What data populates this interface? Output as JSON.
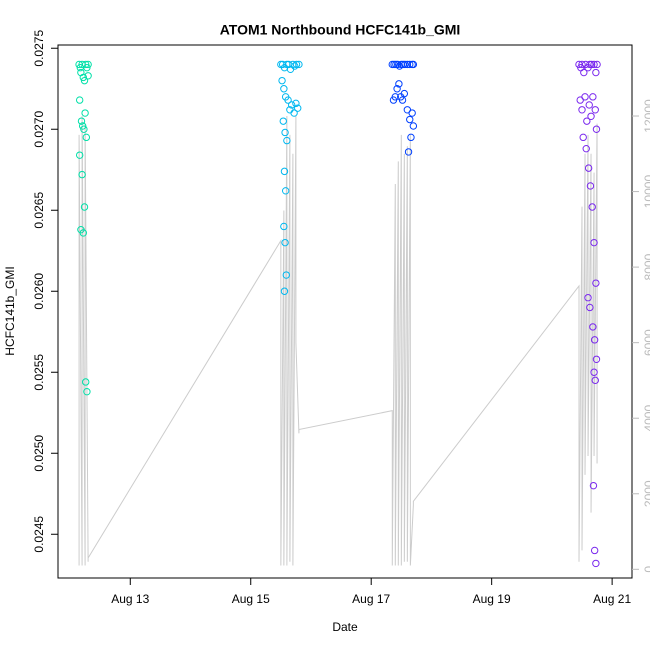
{
  "chart_data": {
    "type": "scatter",
    "title": "ATOM1 Northbound HCFC141b_GMI",
    "x_label": "Date",
    "y_label": "HCFC141b_GMI",
    "xlim": [
      11.8,
      21.33
    ],
    "xticks": [
      {
        "value": 13,
        "label": "Aug 13"
      },
      {
        "value": 15,
        "label": "Aug 15"
      },
      {
        "value": 17,
        "label": "Aug 17"
      },
      {
        "value": 19,
        "label": "Aug 19"
      },
      {
        "value": 21,
        "label": "Aug 21"
      }
    ],
    "ylim": [
      0.02423,
      0.02752
    ],
    "yticks": [
      0.0245,
      {
        "value": 0.025,
        "label": "0.0250"
      },
      0.0255,
      {
        "value": 0.026,
        "label": "0.0260"
      },
      0.0265,
      {
        "value": 0.027,
        "label": "0.0270"
      },
      0.0275
    ],
    "y2lim": [
      -230,
      13880
    ],
    "y2ticks": [
      0,
      2000,
      4000,
      6000,
      8000,
      10000,
      12000
    ],
    "y2_color": "#bbbbbb",
    "series": [
      {
        "color": "#00e0a8",
        "x": [
          12.15,
          12.17,
          12.18,
          12.2,
          12.22,
          12.24,
          12.26,
          12.28,
          12.3,
          12.16,
          12.19,
          12.21,
          12.23,
          12.25,
          12.27,
          12.16,
          12.2,
          12.24,
          12.18,
          12.22,
          12.26,
          12.28,
          12.3
        ],
        "values": [
          0.0274,
          0.02738,
          0.02735,
          0.0274,
          0.02732,
          0.0273,
          0.0274,
          0.02738,
          0.0274,
          0.02718,
          0.02705,
          0.02702,
          0.027,
          0.0271,
          0.02695,
          0.02684,
          0.02672,
          0.02652,
          0.02638,
          0.02636,
          0.02544,
          0.02538,
          0.02733
        ]
      },
      {
        "color": "#00b8f0",
        "x": [
          15.5,
          15.53,
          15.56,
          15.6,
          15.63,
          15.66,
          15.7,
          15.73,
          15.76,
          15.8,
          15.52,
          15.55,
          15.58,
          15.62,
          15.65,
          15.68,
          15.72,
          15.75,
          15.78,
          15.54,
          15.57,
          15.6,
          15.56,
          15.58,
          15.55,
          15.57,
          15.59,
          15.56
        ],
        "values": [
          0.0274,
          0.0274,
          0.02738,
          0.0274,
          0.0274,
          0.02737,
          0.0274,
          0.02739,
          0.0274,
          0.0274,
          0.0273,
          0.02725,
          0.0272,
          0.02718,
          0.02712,
          0.02715,
          0.0271,
          0.02716,
          0.02713,
          0.02705,
          0.02698,
          0.02693,
          0.02674,
          0.02662,
          0.0264,
          0.0263,
          0.0261,
          0.026
        ]
      },
      {
        "color": "#0040ff",
        "x": [
          17.35,
          17.38,
          17.41,
          17.44,
          17.47,
          17.5,
          17.53,
          17.56,
          17.6,
          17.64,
          17.68,
          17.7,
          17.37,
          17.4,
          17.43,
          17.46,
          17.49,
          17.52,
          17.55,
          17.6,
          17.64,
          17.68,
          17.7,
          17.66,
          17.62
        ],
        "values": [
          0.0274,
          0.0274,
          0.0274,
          0.0274,
          0.02739,
          0.0274,
          0.0274,
          0.0274,
          0.0274,
          0.0274,
          0.0274,
          0.0274,
          0.02718,
          0.0272,
          0.02725,
          0.02728,
          0.0272,
          0.02718,
          0.02722,
          0.02712,
          0.02706,
          0.0271,
          0.02702,
          0.02695,
          0.02686
        ]
      },
      {
        "color": "#7a28ee",
        "x": [
          20.45,
          20.48,
          20.5,
          20.53,
          20.56,
          20.6,
          20.63,
          20.66,
          20.7,
          20.73,
          20.75,
          20.47,
          20.5,
          20.55,
          20.58,
          20.62,
          20.65,
          20.68,
          20.72,
          20.74,
          20.52,
          20.57,
          20.61,
          20.64,
          20.67,
          20.7,
          20.73,
          20.6,
          20.63,
          20.68,
          20.71,
          20.74,
          20.7,
          20.72,
          20.69,
          20.71,
          20.73
        ],
        "values": [
          0.0274,
          0.02738,
          0.0274,
          0.02735,
          0.0274,
          0.02738,
          0.0274,
          0.0274,
          0.0274,
          0.02735,
          0.0274,
          0.02718,
          0.02712,
          0.0272,
          0.02705,
          0.02715,
          0.02708,
          0.0272,
          0.02712,
          0.027,
          0.02695,
          0.02688,
          0.02676,
          0.02665,
          0.02652,
          0.0263,
          0.02605,
          0.02596,
          0.0259,
          0.02578,
          0.0257,
          0.02558,
          0.0255,
          0.02545,
          0.0248,
          0.0244,
          0.02432
        ]
      },
      {
        "type": "line",
        "axis": "y2",
        "color": "#cccccc",
        "x": [
          12.15,
          12.15,
          12.2,
          12.2,
          12.25,
          12.25,
          12.3,
          12.3,
          15.5,
          15.5,
          15.55,
          15.55,
          15.6,
          15.6,
          15.65,
          15.65,
          15.7,
          15.7,
          15.75,
          15.75,
          15.8,
          15.8,
          17.35,
          17.35,
          17.4,
          17.4,
          17.45,
          17.45,
          17.5,
          17.5,
          17.55,
          17.55,
          17.6,
          17.6,
          17.65,
          17.65,
          17.7,
          17.7,
          20.45,
          20.45,
          20.5,
          20.5,
          20.55,
          20.55,
          20.6,
          20.6,
          20.65,
          20.65,
          20.7,
          20.7,
          20.75,
          20.75
        ],
        "values": [
          100,
          11500,
          100,
          12000,
          100,
          11800,
          200,
          300,
          8700,
          100,
          9500,
          100,
          12000,
          100,
          11500,
          200,
          11000,
          100,
          12000,
          6000,
          3600,
          3700,
          4200,
          100,
          10200,
          100,
          10800,
          100,
          11500,
          100,
          11000,
          200,
          11200,
          200,
          11500,
          100,
          1700,
          1800,
          7500,
          200,
          9600,
          500,
          11000,
          2500,
          11500,
          3000,
          11000,
          1500,
          10500,
          3000,
          11800,
          2800
        ]
      }
    ]
  }
}
